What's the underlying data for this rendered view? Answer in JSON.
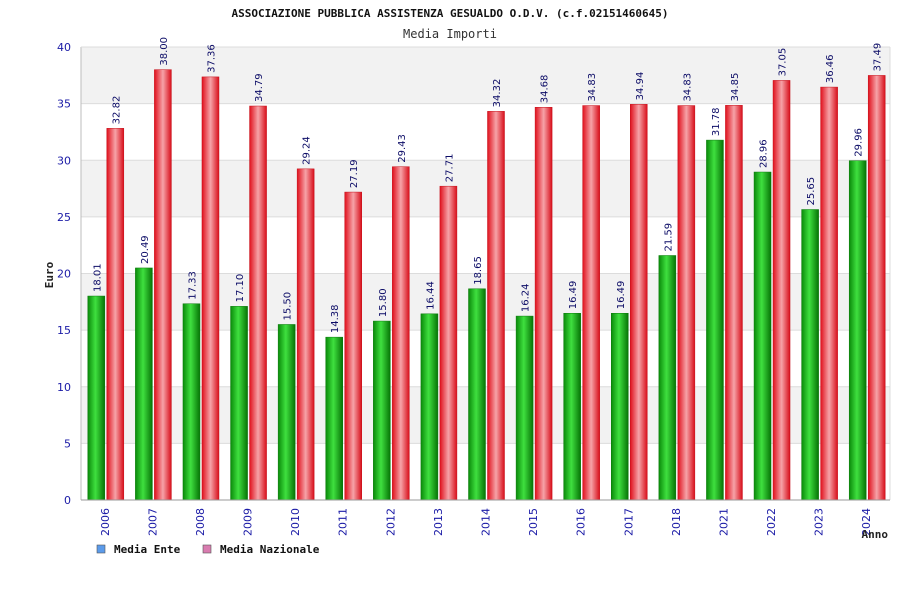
{
  "chart_data": {
    "type": "bar",
    "title": "ASSOCIAZIONE PUBBLICA ASSISTENZA GESUALDO O.D.V. (c.f.02151460645)",
    "subtitle": "Media Importi",
    "xlabel": "Anno",
    "ylabel": "Euro",
    "ylim": [
      0,
      40
    ],
    "yticks": [
      "0",
      "5",
      "10",
      "15",
      "20",
      "25",
      "30",
      "35",
      "40"
    ],
    "grid": true,
    "legend_position": "bottom-left",
    "categories": [
      "2006",
      "2007",
      "2008",
      "2009",
      "2010",
      "2011",
      "2012",
      "2013",
      "2014",
      "2015",
      "2016",
      "2017",
      "2018",
      "2021",
      "2022",
      "2023",
      "2024"
    ],
    "series": [
      {
        "name": "Media Ente",
        "color": "#11a811",
        "legend_color": "#5b9bea",
        "values": [
          18.01,
          20.49,
          17.33,
          17.1,
          15.5,
          14.38,
          15.8,
          16.44,
          18.65,
          16.24,
          16.49,
          16.49,
          21.59,
          31.78,
          28.96,
          25.65,
          29.96
        ],
        "labels": [
          "18.01",
          "20.49",
          "17.33",
          "17.10",
          "15.50",
          "14.38",
          "15.80",
          "16.44",
          "18.65",
          "16.24",
          "16.49",
          "16.49",
          "21.59",
          "31.78",
          "28.96",
          "25.65",
          "29.96"
        ]
      },
      {
        "name": "Media Nazionale",
        "color": "#e8202a",
        "legend_color": "#d97cb0",
        "values": [
          32.82,
          38.0,
          37.36,
          34.79,
          29.24,
          27.19,
          29.43,
          27.71,
          34.32,
          34.68,
          34.83,
          34.94,
          34.83,
          34.85,
          37.05,
          36.46,
          37.49
        ],
        "labels": [
          "32.82",
          "38.00",
          "37.36",
          "34.79",
          "29.24",
          "27.19",
          "29.43",
          "27.71",
          "34.32",
          "34.68",
          "34.83",
          "34.94",
          "34.83",
          "34.85",
          "37.05",
          "36.46",
          "37.49"
        ]
      }
    ]
  }
}
